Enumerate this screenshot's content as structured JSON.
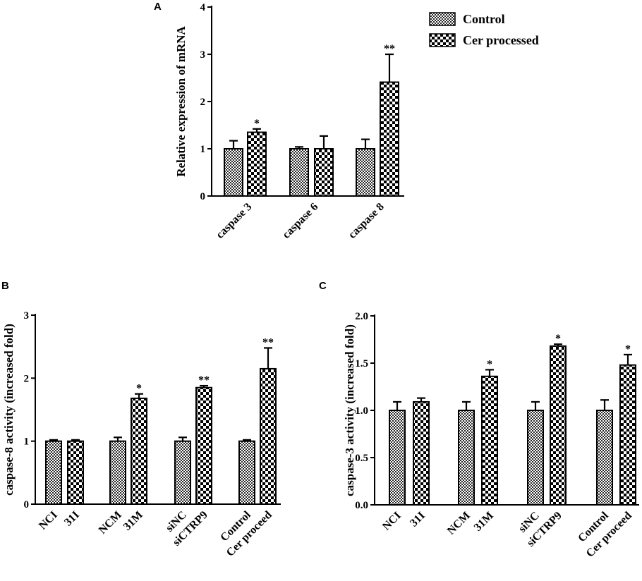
{
  "legend": {
    "control_label": "Control",
    "treated_label": "Cer processed"
  },
  "chart_data": [
    {
      "panel": "A",
      "type": "bar",
      "ylabel": "Relative expression of mRNA",
      "ylim": [
        0,
        4
      ],
      "yticks": [
        "0",
        "1",
        "2",
        "3",
        "4"
      ],
      "categories": [
        "caspase 3",
        "caspase 6",
        "caspase 8"
      ],
      "series": [
        {
          "name": "Control",
          "values": [
            1.0,
            1.0,
            1.0
          ],
          "errors": [
            0.17,
            0.04,
            0.2
          ],
          "sig": [
            "",
            "",
            ""
          ]
        },
        {
          "name": "Cer processed",
          "values": [
            1.35,
            1.0,
            2.41
          ],
          "errors": [
            0.07,
            0.27,
            0.59
          ],
          "sig": [
            "*",
            "",
            "**"
          ]
        }
      ]
    },
    {
      "panel": "B",
      "type": "bar",
      "ylabel": "caspase-8 activity (increased fold)",
      "ylim": [
        0,
        3
      ],
      "yticks": [
        "0",
        "1",
        "2",
        "3"
      ],
      "categories": [
        "NCI",
        "31I",
        "NCM",
        "31M",
        "siNC",
        "siCTRP9",
        "Control",
        "Cer proceed"
      ],
      "groups": [
        {
          "control": 1.0,
          "control_err": 0.02,
          "treated": 1.0,
          "treated_err": 0.02,
          "sig": ""
        },
        {
          "control": 1.0,
          "control_err": 0.06,
          "treated": 1.68,
          "treated_err": 0.07,
          "sig": "*"
        },
        {
          "control": 1.0,
          "control_err": 0.06,
          "treated": 1.85,
          "treated_err": 0.03,
          "sig": "**"
        },
        {
          "control": 1.0,
          "control_err": 0.02,
          "treated": 2.15,
          "treated_err": 0.33,
          "sig": "**"
        }
      ]
    },
    {
      "panel": "C",
      "type": "bar",
      "ylabel": "caspase-3 activity (increased fold)",
      "ylim": [
        0,
        2
      ],
      "yticks": [
        "0.0",
        "0.5",
        "1.0",
        "1.5",
        "2.0"
      ],
      "categories": [
        "NCI",
        "31I",
        "NCM",
        "31M",
        "siNC",
        "siCTRP9",
        "Control",
        "Cer proceed"
      ],
      "groups": [
        {
          "control": 1.0,
          "control_err": 0.09,
          "treated": 1.09,
          "treated_err": 0.04,
          "sig": ""
        },
        {
          "control": 1.0,
          "control_err": 0.09,
          "treated": 1.36,
          "treated_err": 0.07,
          "sig": "*"
        },
        {
          "control": 1.0,
          "control_err": 0.09,
          "treated": 1.68,
          "treated_err": 0.02,
          "sig": "*"
        },
        {
          "control": 1.0,
          "control_err": 0.11,
          "treated": 1.48,
          "treated_err": 0.11,
          "sig": "*"
        }
      ]
    }
  ]
}
